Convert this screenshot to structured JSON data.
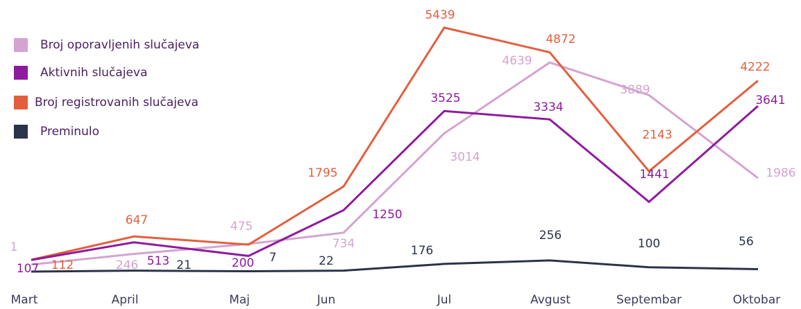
{
  "chart_data": {
    "type": "line",
    "categories": [
      "Mart",
      "April",
      "Maj",
      "Jun",
      "Jul",
      "Avgust",
      "Septembar",
      "Oktobar"
    ],
    "series": [
      {
        "name": "Broj oporavljenih slučajeva",
        "color": "#d4a3d0",
        "values": [
          1,
          246,
          475,
          734,
          3014,
          4639,
          3889,
          1986
        ]
      },
      {
        "name": "Aktivnih slučajeva",
        "color": "#8e1a9e",
        "values": [
          107,
          513,
          200,
          1250,
          3525,
          3334,
          1441,
          3641
        ]
      },
      {
        "name": "Broj registrovanih slučajeva",
        "color": "#e35f3c",
        "values": [
          112,
          647,
          460,
          1795,
          5439,
          4872,
          2143,
          4222
        ],
        "value_labels": [
          "112",
          "647",
          null,
          "1795",
          "5439",
          "4872",
          "2143",
          "4222"
        ]
      },
      {
        "name": "Preminulo",
        "color": "#2a3348",
        "values": [
          0,
          21,
          7,
          22,
          176,
          256,
          100,
          56
        ],
        "value_labels": [
          null,
          "21",
          "7",
          "22",
          "176",
          "256",
          "100",
          "56"
        ]
      }
    ],
    "legend": "top-left"
  }
}
